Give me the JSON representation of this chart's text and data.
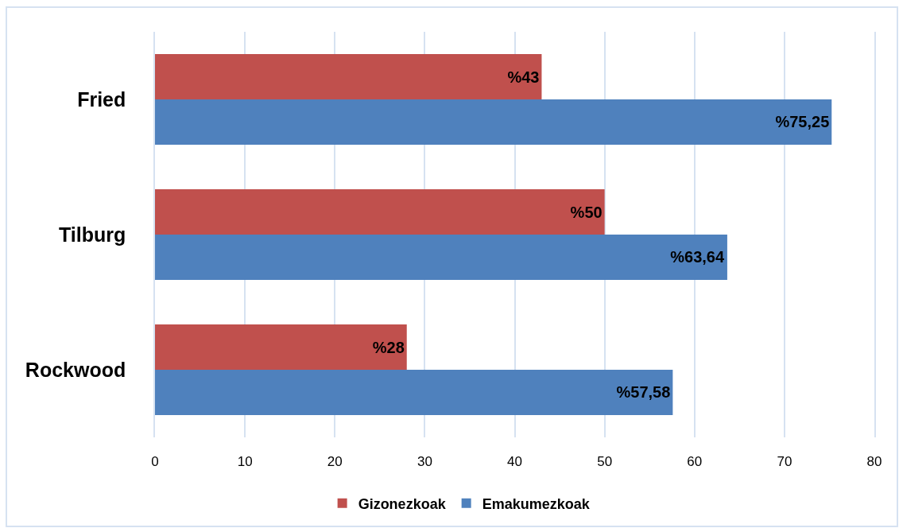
{
  "chart_data": {
    "type": "bar",
    "orientation": "horizontal",
    "categories": [
      "Fried",
      "Tilburg",
      "Rockwood"
    ],
    "series": [
      {
        "name": "Gizonezkoak",
        "color": "#c0504d",
        "values": [
          43,
          50,
          28
        ],
        "value_labels": [
          "%43",
          "%50",
          "%28"
        ]
      },
      {
        "name": "Emakumezkoak",
        "color": "#4f81bd",
        "values": [
          75.25,
          63.64,
          57.58
        ],
        "value_labels": [
          "%75,25",
          "%63,64",
          "%57,58"
        ]
      }
    ],
    "xlim": [
      0,
      80
    ],
    "xticks": [
      0,
      10,
      20,
      30,
      40,
      50,
      60,
      70,
      80
    ],
    "grid": "x",
    "legend": "bottom"
  }
}
